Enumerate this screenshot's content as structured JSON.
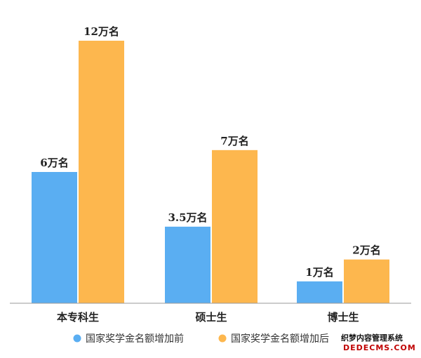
{
  "chart_data": {
    "type": "bar",
    "title": "",
    "xlabel": "",
    "ylabel": "",
    "ylim": [
      0,
      12.5
    ],
    "grid": false,
    "legend_position": "bottom",
    "categories": [
      "本专科生",
      "硕士生",
      "博士生"
    ],
    "series": [
      {
        "name": "国家奖学金名额增加前",
        "color": "#5aaef2",
        "values": [
          6,
          3.5,
          1
        ],
        "labels": [
          "6万名",
          "3.5万名",
          "1万名"
        ]
      },
      {
        "name": "国家奖学金名额增加后",
        "color": "#fdb74e",
        "values": [
          12,
          7,
          2
        ],
        "labels": [
          "12万名",
          "7万名",
          "2万名"
        ]
      }
    ],
    "axis_color": "#999999"
  },
  "watermark": {
    "line1": "织梦内容管理系统",
    "line2": "DEDECMS.COM"
  }
}
